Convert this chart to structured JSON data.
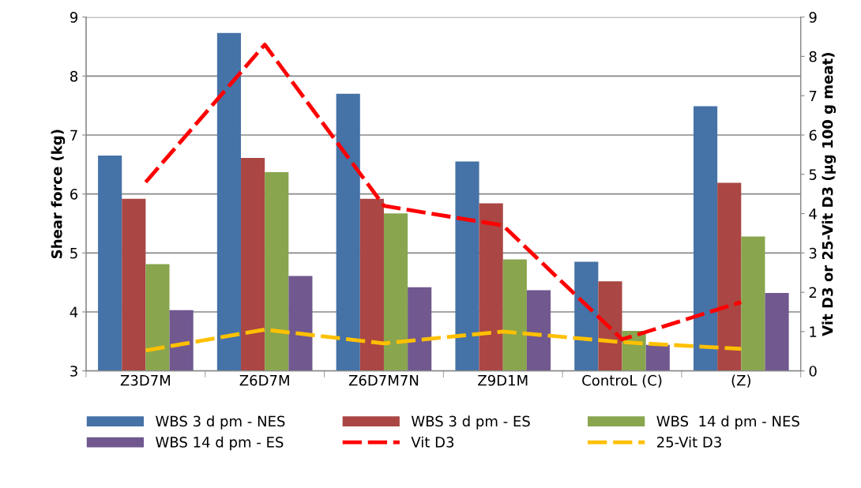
{
  "chart_data": {
    "type": "bar",
    "ylabel": "Shear force (kg)",
    "y2label": "Vit D3 or 25-Vit D3 (µg 100 g meat)",
    "categories": [
      "Z3D7M",
      "Z6D7M",
      "Z6D7M7N",
      "Z9D1M",
      "ControL (C)",
      "(Z)"
    ],
    "series": [
      {
        "name": "WBS 3 d pm - NES",
        "color": "#4572a7",
        "values": [
          6.65,
          8.73,
          7.7,
          6.55,
          4.85,
          7.49
        ]
      },
      {
        "name": "WBS 3 d pm - ES",
        "color": "#aa4643",
        "values": [
          5.92,
          6.61,
          5.92,
          5.84,
          4.52,
          6.19
        ]
      },
      {
        "name": "WBS  14 d pm - NES",
        "color": "#89a54e",
        "values": [
          4.81,
          6.37,
          5.67,
          4.89,
          3.68,
          5.28
        ]
      },
      {
        "name": "WBS 14 d pm - ES",
        "color": "#71588f",
        "values": [
          4.03,
          4.61,
          4.42,
          4.37,
          3.44,
          4.32
        ]
      },
      {
        "name": "Vit D3",
        "type": "line",
        "axis": "y2",
        "color": "#ff0000",
        "line_style": "dashed",
        "values": [
          4.8,
          8.3,
          4.2,
          3.7,
          0.8,
          1.75
        ]
      },
      {
        "name": "25-Vit D3",
        "type": "line",
        "axis": "y2",
        "color": "#ffc000",
        "line_style": "dashed",
        "values": [
          0.52,
          1.05,
          0.7,
          1.0,
          0.73,
          0.56
        ]
      }
    ],
    "ylim": [
      3,
      9
    ],
    "yticks": [
      3,
      4,
      5,
      6,
      7,
      8,
      9
    ],
    "y2lim": [
      0,
      9
    ],
    "y2ticks": [
      0,
      1,
      2,
      3,
      4,
      5,
      6,
      7,
      8,
      9
    ],
    "grid": "y",
    "legend": "bottom",
    "marker": "none"
  }
}
